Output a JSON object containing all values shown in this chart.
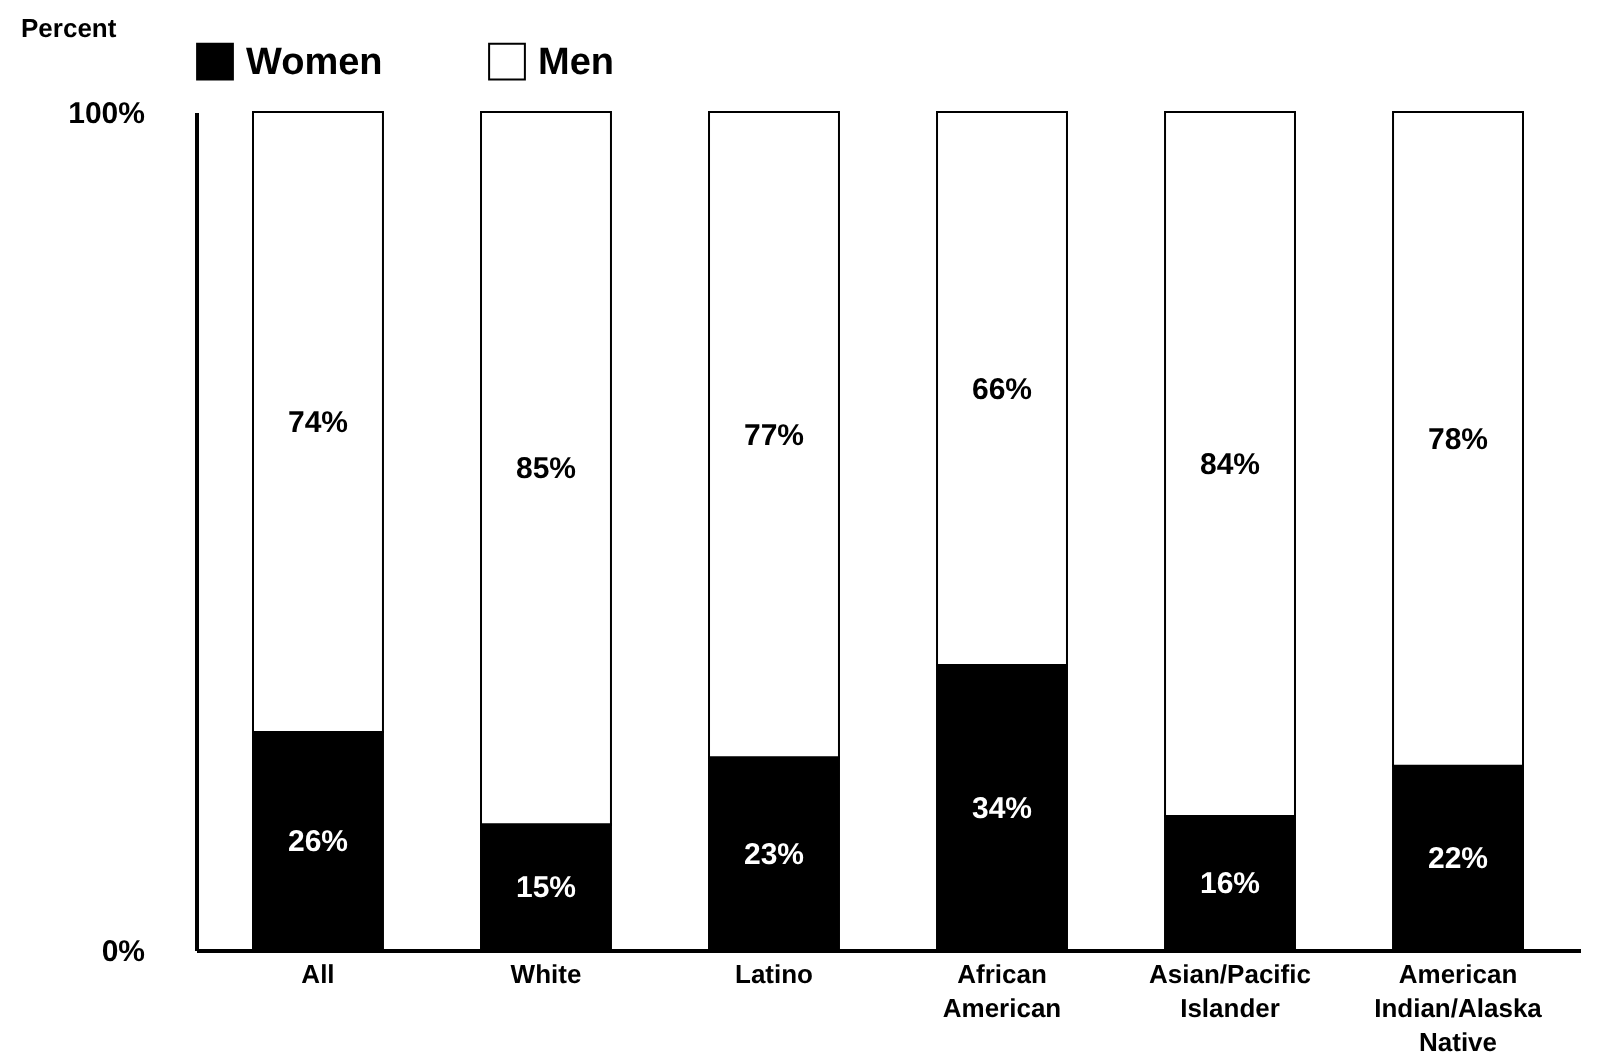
{
  "chart_data": {
    "type": "bar",
    "stacked": true,
    "ylabel": "Percent",
    "categories": [
      "All",
      "White",
      "Latino",
      "African American",
      "Asian/Pacific Islander",
      "American Indian/Alaska Native"
    ],
    "series": [
      {
        "name": "Women",
        "color": "#000000",
        "values": [
          26,
          15,
          23,
          34,
          16,
          22
        ],
        "value_labels": [
          "26%",
          "15%",
          "23%",
          "34%",
          "16%",
          "22%"
        ]
      },
      {
        "name": "Men",
        "color": "#ffffff",
        "values": [
          74,
          85,
          77,
          66,
          84,
          78
        ],
        "value_labels": [
          "74%",
          "85%",
          "77%",
          "66%",
          "84%",
          "78%"
        ]
      }
    ],
    "ylim": [
      0,
      100
    ],
    "yticks": [
      {
        "value": 0,
        "label": "0%"
      },
      {
        "value": 100,
        "label": "100%"
      }
    ],
    "grid": false,
    "legend": "top"
  }
}
